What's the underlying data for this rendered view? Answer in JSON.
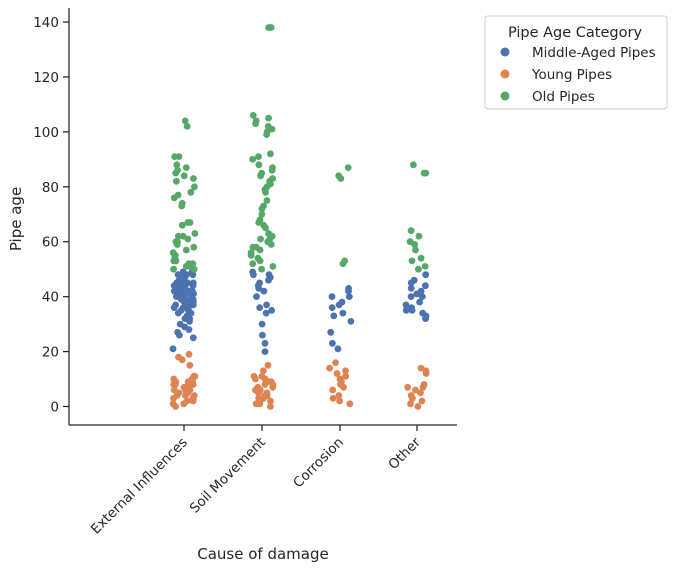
{
  "chart_data": {
    "type": "scatter",
    "subtype": "strip",
    "xlabel": "Cause of damage",
    "ylabel": "Pipe age",
    "categories": [
      "External Influences",
      "Soil Movement",
      "Corrosion",
      "Other"
    ],
    "ylim": [
      -7,
      145
    ],
    "yticks": [
      0,
      20,
      40,
      60,
      80,
      100,
      120,
      140
    ],
    "grid": false,
    "legend": {
      "title": "Pipe Age Category",
      "placement": "outside-top-right",
      "entries": [
        "Middle-Aged Pipes",
        "Young Pipes",
        "Old Pipes"
      ]
    },
    "series": [
      {
        "name": "Middle-Aged Pipes",
        "color": "#4c72b0",
        "values": [
          [
            21,
            25,
            26,
            27,
            28,
            29,
            30,
            31,
            32,
            32,
            33,
            33,
            34,
            34,
            35,
            35,
            35,
            36,
            36,
            36,
            37,
            37,
            37,
            38,
            38,
            38,
            38,
            39,
            39,
            39,
            39,
            40,
            40,
            40,
            40,
            40,
            41,
            41,
            41,
            41,
            42,
            42,
            42,
            42,
            43,
            43,
            43,
            43,
            44,
            44,
            44,
            44,
            45,
            45,
            45,
            45,
            46,
            46,
            46,
            47,
            47,
            47,
            48,
            48,
            48,
            49,
            49
          ],
          [
            20,
            23,
            26,
            30,
            34,
            35,
            36,
            37,
            40,
            42,
            43,
            44,
            45,
            46,
            47,
            48,
            48,
            49
          ],
          [
            21,
            23,
            27,
            31,
            33,
            34,
            36,
            37,
            38,
            40,
            40,
            42,
            43
          ],
          [
            32,
            33,
            34,
            35,
            35,
            36,
            36,
            37,
            38,
            40,
            40,
            41,
            42,
            43,
            44,
            45,
            46,
            48
          ]
        ]
      },
      {
        "name": "Young Pipes",
        "color": "#dd8452",
        "values": [
          [
            0,
            1,
            1,
            2,
            2,
            3,
            3,
            3,
            4,
            4,
            4,
            5,
            5,
            5,
            5,
            6,
            6,
            6,
            7,
            7,
            7,
            8,
            8,
            8,
            9,
            9,
            9,
            10,
            10,
            10,
            11,
            11,
            15,
            17,
            18,
            19
          ],
          [
            0,
            1,
            1,
            2,
            2,
            3,
            3,
            4,
            4,
            5,
            5,
            6,
            6,
            7,
            7,
            8,
            8,
            9,
            9,
            10,
            10,
            11,
            11,
            13,
            15
          ],
          [
            1,
            2,
            3,
            4,
            6,
            7,
            8,
            9,
            10,
            11,
            12,
            13,
            14,
            16
          ],
          [
            0,
            1,
            2,
            3,
            4,
            5,
            6,
            7,
            7,
            8,
            12,
            13,
            14
          ]
        ]
      },
      {
        "name": "Old Pipes",
        "color": "#55a868",
        "values": [
          [
            50,
            50,
            51,
            51,
            52,
            52,
            53,
            53,
            54,
            55,
            55,
            56,
            57,
            58,
            59,
            60,
            60,
            61,
            62,
            62,
            63,
            66,
            67,
            67,
            73,
            74,
            76,
            77,
            78,
            80,
            82,
            83,
            84,
            85,
            86,
            87,
            88,
            91,
            91,
            102,
            104
          ],
          [
            50,
            51,
            52,
            53,
            54,
            55,
            56,
            57,
            58,
            58,
            59,
            60,
            60,
            61,
            61,
            62,
            63,
            65,
            66,
            67,
            68,
            70,
            72,
            73,
            75,
            78,
            79,
            80,
            81,
            82,
            83,
            84,
            85,
            86,
            87,
            88,
            90,
            91,
            92,
            99,
            100,
            101,
            102,
            103,
            104,
            105,
            106,
            138,
            138
          ],
          [
            52,
            53,
            83,
            84,
            87
          ],
          [
            50,
            51,
            53,
            54,
            57,
            59,
            60,
            62,
            64,
            85,
            85,
            88
          ]
        ]
      }
    ]
  }
}
